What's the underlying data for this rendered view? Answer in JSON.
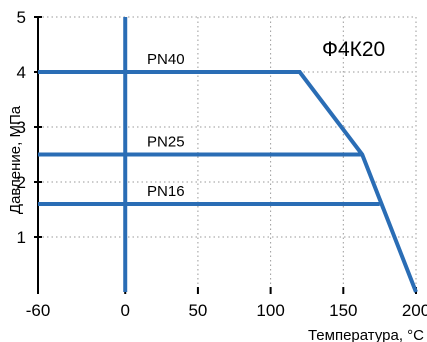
{
  "chart_data": {
    "type": "line",
    "title": "Ф4К20",
    "xlabel": "Температура, °С",
    "ylabel": "Давление, МПа",
    "xlim": [
      -60,
      200
    ],
    "ylim": [
      0,
      5
    ],
    "xticks": [
      -60,
      0,
      50,
      100,
      150,
      200
    ],
    "yticks": [
      1,
      2,
      3,
      4,
      5
    ],
    "grid": true,
    "series": [
      {
        "name": "PN40",
        "x": [
          -60,
          120,
          163,
          200
        ],
        "y": [
          4.0,
          4.0,
          2.5,
          0.0
        ]
      },
      {
        "name": "PN25",
        "x": [
          -60,
          163
        ],
        "y": [
          2.5,
          2.5
        ]
      },
      {
        "name": "PN16",
        "x": [
          -60,
          175
        ],
        "y": [
          1.6,
          1.6
        ]
      }
    ],
    "colors": {
      "line": "#2a6db5",
      "axis": "#000000",
      "grid": "#9a9a9a"
    }
  }
}
